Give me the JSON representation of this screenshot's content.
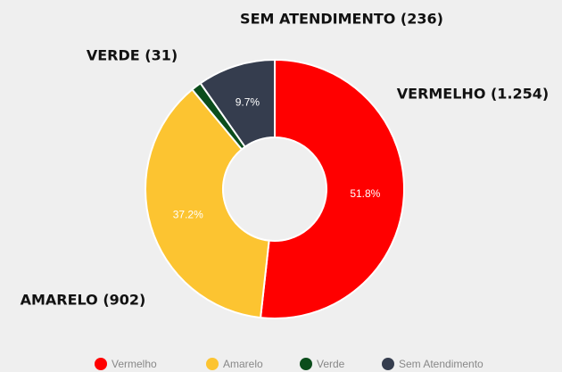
{
  "chart_data": {
    "type": "donut",
    "categories": [
      "Vermelho",
      "Amarelo",
      "Verde",
      "Sem Atendimento"
    ],
    "values": [
      1254,
      902,
      31,
      236
    ],
    "value_labels": [
      "VERMELHO (1.254)",
      "AMARELO (902)",
      "VERDE (31)",
      "SEM ATENDIMENTO (236)"
    ],
    "percent_labels": [
      "51.8%",
      "37.2%",
      null,
      "9.7%"
    ],
    "colors": [
      "#ff0000",
      "#fcc431",
      "#0b4d1b",
      "#353d4e"
    ],
    "legend": "bottom"
  }
}
